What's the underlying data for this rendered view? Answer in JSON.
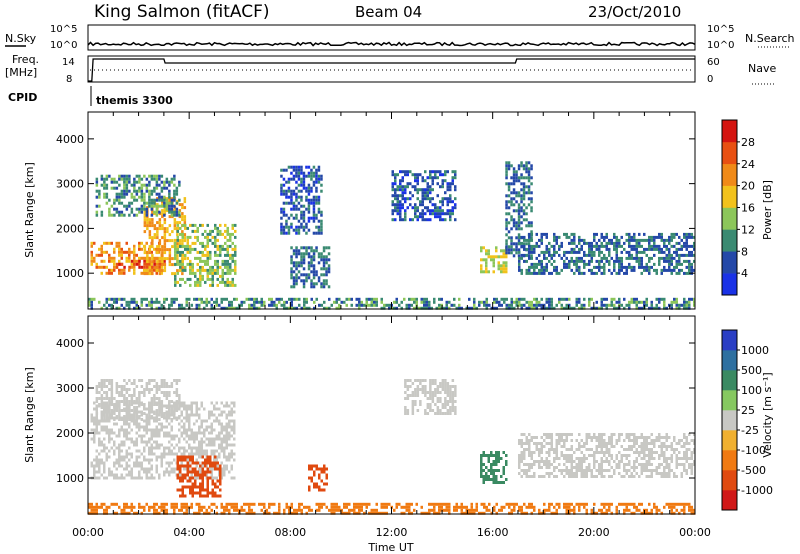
{
  "header": {
    "site": "King Salmon (fitACF)",
    "beam": "Beam 04",
    "date": "23/Oct/2010"
  },
  "top_panels": {
    "nsky_label": "N.Sky",
    "nsearch_label": "N.Search",
    "nsky_ticks": [
      "10^5",
      "10^0"
    ],
    "nsearch_ticks": [
      "10^5",
      "10^0"
    ],
    "freq_label_line1": "Freq.",
    "freq_label_line2": "[MHz]",
    "freq_ticks": [
      "14",
      "8"
    ],
    "nave_label": "Nave",
    "nave_ticks": [
      "60",
      "0"
    ],
    "cpid_label": "CPID",
    "cpid_value": "themis 3300"
  },
  "axes": {
    "x_ticks": [
      "00:00",
      "04:00",
      "08:00",
      "12:00",
      "16:00",
      "20:00",
      "00:00"
    ],
    "x_label": "Time UT",
    "y_ticks": [
      "1000",
      "2000",
      "3000",
      "4000"
    ],
    "y_label": "Slant Range [km]"
  },
  "power_colorbar": {
    "label": "Power [dB]",
    "ticks": [
      "4",
      "8",
      "12",
      "16",
      "20",
      "24",
      "28"
    ],
    "colors": [
      "#1a32e6",
      "#2448a8",
      "#3a8a72",
      "#8cc65a",
      "#f2c21c",
      "#f08a18",
      "#e85012",
      "#d41410"
    ]
  },
  "velocity_colorbar": {
    "label": "Velocity [m s⁻¹]",
    "ticks": [
      "1000",
      "500",
      "100",
      "25",
      "-25",
      "-100",
      "-500",
      "-1000"
    ],
    "colors": [
      "#2a3ec4",
      "#2e70a0",
      "#3a8a62",
      "#86c860",
      "#c8c8c4",
      "#f0b030",
      "#f07a12",
      "#e04a10",
      "#d01818"
    ]
  },
  "chart_data": [
    {
      "type": "line",
      "title": "King Salmon (fitACF)",
      "series": [
        {
          "name": "N.Sky",
          "x": [
            "00:00",
            "24:00"
          ],
          "values": [
            1,
            1
          ]
        }
      ],
      "x": [
        "00:00",
        "04:00",
        "08:00",
        "12:00",
        "16:00",
        "20:00",
        "00:00"
      ]
    },
    {
      "type": "line",
      "series": [
        {
          "name": "Freq.",
          "x": [
            0.0,
            0.15,
            0.2,
            3.0,
            3.05,
            16.9,
            16.95,
            24.0
          ],
          "values": [
            8,
            8,
            13.5,
            13.5,
            12.5,
            12.5,
            13.5,
            13.5
          ]
        }
      ],
      "ylim": [
        8,
        14
      ]
    },
    {
      "type": "heatmap",
      "title": "Power [dB]",
      "xlabel": "Time UT",
      "ylabel": "Slant Range [km]",
      "xlim": [
        0,
        24
      ],
      "ylim": [
        200,
        4600
      ],
      "colorbar": {
        "label": "Power [dB]",
        "range": [
          0,
          32
        ],
        "ticks": [
          4,
          8,
          12,
          16,
          20,
          24,
          28
        ]
      },
      "regions": [
        {
          "t": [
            0.1,
            2.9
          ],
          "r": [
            1000,
            1700
          ],
          "value": 22
        },
        {
          "t": [
            1.0,
            3.0
          ],
          "r": [
            1100,
            1300
          ],
          "value": 28
        },
        {
          "t": [
            2.2,
            3.8
          ],
          "r": [
            1000,
            2700
          ],
          "value": 20
        },
        {
          "t": [
            3.4,
            5.8
          ],
          "r": [
            700,
            2100
          ],
          "value": 14
        },
        {
          "t": [
            0.3,
            3.6
          ],
          "r": [
            2300,
            3200
          ],
          "value": 10
        },
        {
          "t": [
            8.0,
            9.5
          ],
          "r": [
            700,
            1600
          ],
          "value": 8
        },
        {
          "t": [
            7.6,
            9.2
          ],
          "r": [
            1900,
            3400
          ],
          "value": 6
        },
        {
          "t": [
            12.0,
            14.5
          ],
          "r": [
            2200,
            3300
          ],
          "value": 6
        },
        {
          "t": [
            15.5,
            16.5
          ],
          "r": [
            1000,
            1600
          ],
          "value": 16
        },
        {
          "t": [
            16.5,
            17.5
          ],
          "r": [
            1400,
            3500
          ],
          "value": 8
        },
        {
          "t": [
            17.0,
            24.0
          ],
          "r": [
            1000,
            1900
          ],
          "value": 8
        },
        {
          "t": [
            0.0,
            24.0
          ],
          "r": [
            200,
            450
          ],
          "value": 10
        }
      ]
    },
    {
      "type": "heatmap",
      "title": "Velocity [m s⁻¹]",
      "xlabel": "Time UT",
      "ylabel": "Slant Range [km]",
      "xlim": [
        0,
        24
      ],
      "ylim": [
        200,
        4600
      ],
      "colorbar": {
        "label": "Velocity [m s⁻¹]",
        "ticks": [
          1000,
          500,
          100,
          25,
          -25,
          -100,
          -500,
          -1000
        ]
      },
      "regions": [
        {
          "t": [
            0.1,
            5.8
          ],
          "r": [
            1000,
            2700
          ],
          "value": 0
        },
        {
          "t": [
            3.5,
            5.2
          ],
          "r": [
            600,
            1500
          ],
          "value": -600
        },
        {
          "t": [
            0.3,
            3.6
          ],
          "r": [
            2300,
            3200
          ],
          "value": 0
        },
        {
          "t": [
            8.7,
            9.4
          ],
          "r": [
            700,
            1300
          ],
          "value": -600
        },
        {
          "t": [
            12.5,
            14.5
          ],
          "r": [
            2400,
            3200
          ],
          "value": 0
        },
        {
          "t": [
            15.5,
            16.5
          ],
          "r": [
            900,
            1600
          ],
          "value": 200
        },
        {
          "t": [
            17.0,
            24.0
          ],
          "r": [
            1000,
            2000
          ],
          "value": 0
        },
        {
          "t": [
            0.0,
            24.0
          ],
          "r": [
            200,
            450
          ],
          "value": -200
        }
      ]
    }
  ]
}
